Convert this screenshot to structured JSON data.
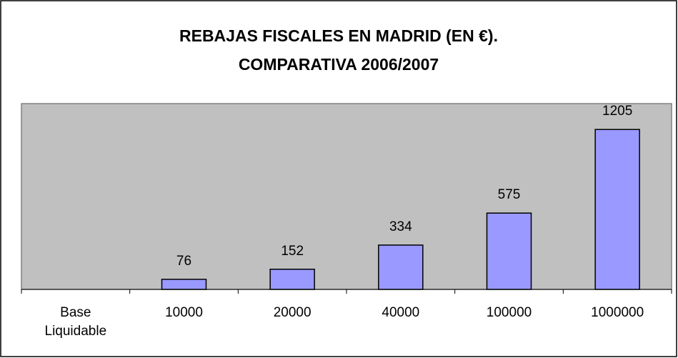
{
  "chart_data": {
    "type": "bar",
    "title": [
      "REBAJAS FISCALES EN MADRID (EN €).",
      "COMPARATIVA 2006/2007"
    ],
    "categories": [
      "Base Liquidable",
      "10000",
      "20000",
      "40000",
      "100000",
      "1000000"
    ],
    "values": [
      null,
      76,
      152,
      334,
      575,
      1205
    ],
    "color": "#9999ff",
    "ylim": [
      0,
      1400
    ]
  }
}
